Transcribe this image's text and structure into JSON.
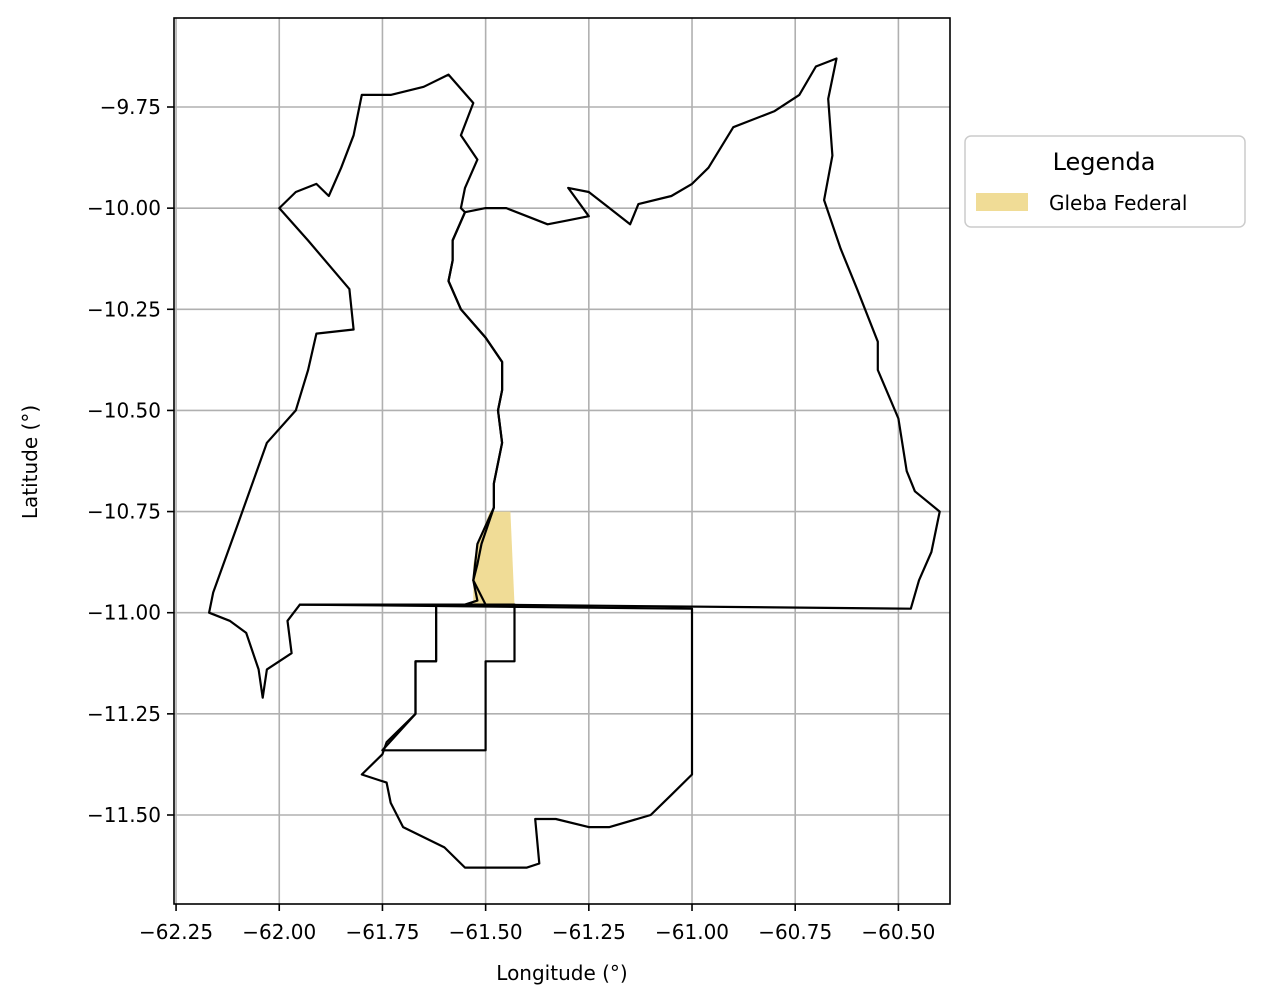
{
  "chart_data": {
    "type": "map",
    "xlabel": "Longitude (°)",
    "ylabel": "Latitude (°)",
    "xlim": [
      -62.255,
      -60.375
    ],
    "ylim": [
      -11.72,
      -9.53
    ],
    "grid": true,
    "xticks": [
      -62.25,
      -62.0,
      -61.75,
      -61.5,
      -61.25,
      -61.0,
      -60.75,
      -60.5
    ],
    "xtick_labels": [
      "−62.25",
      "−62.00",
      "−61.75",
      "−61.50",
      "−61.25",
      "−61.00",
      "−60.75",
      "−60.50"
    ],
    "yticks": [
      -9.75,
      -10.0,
      -10.25,
      -10.5,
      -10.75,
      -11.0,
      -11.25,
      -11.5
    ],
    "ytick_labels": [
      "−9.75",
      "−10.00",
      "−10.25",
      "−10.50",
      "−10.75",
      "−11.00",
      "−11.25",
      "−11.50"
    ],
    "legend": {
      "title": "Legenda",
      "placement": "outside-right-top",
      "entries": [
        {
          "label": "Gleba Federal",
          "color": "#f0dc96"
        }
      ]
    },
    "regions": [
      {
        "name": "west-region",
        "coords": [
          [
            -61.8,
            -9.72
          ],
          [
            -61.73,
            -9.72
          ],
          [
            -61.65,
            -9.7
          ],
          [
            -61.59,
            -9.67
          ],
          [
            -61.53,
            -9.74
          ],
          [
            -61.56,
            -9.82
          ],
          [
            -61.52,
            -9.88
          ],
          [
            -61.55,
            -9.95
          ],
          [
            -61.56,
            -10.0
          ],
          [
            -61.55,
            -10.01
          ],
          [
            -61.58,
            -10.08
          ],
          [
            -61.58,
            -10.13
          ],
          [
            -61.59,
            -10.18
          ],
          [
            -61.56,
            -10.25
          ],
          [
            -61.5,
            -10.32
          ],
          [
            -61.46,
            -10.38
          ],
          [
            -61.46,
            -10.45
          ],
          [
            -61.47,
            -10.5
          ],
          [
            -61.46,
            -10.58
          ],
          [
            -61.48,
            -10.68
          ],
          [
            -61.48,
            -10.74
          ],
          [
            -61.51,
            -10.83
          ],
          [
            -61.52,
            -10.88
          ],
          [
            -61.53,
            -10.92
          ],
          [
            -61.52,
            -10.97
          ],
          [
            -61.55,
            -10.98
          ],
          [
            -61.95,
            -10.98
          ],
          [
            -61.98,
            -11.02
          ],
          [
            -61.97,
            -11.1
          ],
          [
            -62.03,
            -11.14
          ],
          [
            -62.04,
            -11.21
          ],
          [
            -62.05,
            -11.14
          ],
          [
            -62.08,
            -11.05
          ],
          [
            -62.12,
            -11.02
          ],
          [
            -62.17,
            -11.0
          ],
          [
            -62.16,
            -10.95
          ],
          [
            -62.1,
            -10.78
          ],
          [
            -62.03,
            -10.58
          ],
          [
            -61.96,
            -10.5
          ],
          [
            -61.93,
            -10.4
          ],
          [
            -61.91,
            -10.31
          ],
          [
            -61.82,
            -10.3
          ],
          [
            -61.83,
            -10.2
          ],
          [
            -61.93,
            -10.08
          ],
          [
            -62.0,
            -10.0
          ],
          [
            -61.96,
            -9.96
          ],
          [
            -61.91,
            -9.94
          ],
          [
            -61.88,
            -9.97
          ],
          [
            -61.85,
            -9.9
          ],
          [
            -61.82,
            -9.82
          ],
          [
            -61.8,
            -9.72
          ]
        ]
      },
      {
        "name": "east-region",
        "coords": [
          [
            -61.5,
            -10.0
          ],
          [
            -61.45,
            -10.0
          ],
          [
            -61.4,
            -10.02
          ],
          [
            -61.35,
            -10.04
          ],
          [
            -61.3,
            -10.03
          ],
          [
            -61.25,
            -10.02
          ],
          [
            -61.3,
            -9.95
          ],
          [
            -61.25,
            -9.96
          ],
          [
            -61.2,
            -10.0
          ],
          [
            -61.15,
            -10.04
          ],
          [
            -61.13,
            -9.99
          ],
          [
            -61.05,
            -9.97
          ],
          [
            -61.0,
            -9.94
          ],
          [
            -60.96,
            -9.9
          ],
          [
            -60.9,
            -9.8
          ],
          [
            -60.8,
            -9.76
          ],
          [
            -60.74,
            -9.72
          ],
          [
            -60.7,
            -9.65
          ],
          [
            -60.65,
            -9.63
          ],
          [
            -60.67,
            -9.73
          ],
          [
            -60.66,
            -9.87
          ],
          [
            -60.68,
            -9.98
          ],
          [
            -60.64,
            -10.1
          ],
          [
            -60.6,
            -10.2
          ],
          [
            -60.55,
            -10.33
          ],
          [
            -60.55,
            -10.4
          ],
          [
            -60.5,
            -10.52
          ],
          [
            -60.48,
            -10.65
          ],
          [
            -60.46,
            -10.7
          ],
          [
            -60.4,
            -10.75
          ],
          [
            -60.42,
            -10.85
          ],
          [
            -60.45,
            -10.92
          ],
          [
            -60.47,
            -10.99
          ],
          [
            -61.5,
            -10.98
          ],
          [
            -61.53,
            -10.92
          ],
          [
            -61.52,
            -10.83
          ],
          [
            -61.48,
            -10.74
          ],
          [
            -61.48,
            -10.68
          ],
          [
            -61.46,
            -10.58
          ],
          [
            -61.47,
            -10.5
          ],
          [
            -61.46,
            -10.45
          ],
          [
            -61.46,
            -10.38
          ],
          [
            -61.5,
            -10.32
          ],
          [
            -61.56,
            -10.25
          ],
          [
            -61.59,
            -10.18
          ],
          [
            -61.58,
            -10.13
          ],
          [
            -61.58,
            -10.08
          ],
          [
            -61.55,
            -10.01
          ],
          [
            -61.5,
            -10.0
          ]
        ]
      },
      {
        "name": "south-region",
        "coords": [
          [
            -61.95,
            -10.98
          ],
          [
            -61.0,
            -10.99
          ],
          [
            -61.0,
            -11.4
          ],
          [
            -61.05,
            -11.45
          ],
          [
            -61.1,
            -11.5
          ],
          [
            -61.2,
            -11.53
          ],
          [
            -61.25,
            -11.53
          ],
          [
            -61.33,
            -11.51
          ],
          [
            -61.38,
            -11.51
          ],
          [
            -61.37,
            -11.62
          ],
          [
            -61.4,
            -11.63
          ],
          [
            -61.5,
            -11.63
          ],
          [
            -61.55,
            -11.63
          ],
          [
            -61.6,
            -11.58
          ],
          [
            -61.7,
            -11.53
          ],
          [
            -61.73,
            -11.47
          ],
          [
            -61.74,
            -11.42
          ],
          [
            -61.8,
            -11.4
          ],
          [
            -61.75,
            -11.35
          ],
          [
            -61.74,
            -11.32
          ],
          [
            -61.67,
            -11.25
          ],
          [
            -61.67,
            -11.12
          ],
          [
            -61.62,
            -11.12
          ],
          [
            -61.62,
            -10.98
          ],
          [
            -61.95,
            -10.98
          ]
        ]
      },
      {
        "name": "inner-south-polygon",
        "coords": [
          [
            -61.62,
            -10.98
          ],
          [
            -61.62,
            -11.12
          ],
          [
            -61.67,
            -11.12
          ],
          [
            -61.67,
            -11.25
          ],
          [
            -61.75,
            -11.34
          ],
          [
            -61.5,
            -11.34
          ],
          [
            -61.5,
            -11.12
          ],
          [
            -61.43,
            -11.12
          ],
          [
            -61.43,
            -10.98
          ],
          [
            -61.62,
            -10.98
          ]
        ]
      }
    ],
    "highlighted_area": {
      "name": "Gleba Federal",
      "coords": [
        [
          -61.52,
          -10.83
        ],
        [
          -61.49,
          -10.75
        ],
        [
          -61.44,
          -10.75
        ],
        [
          -61.43,
          -10.98
        ],
        [
          -61.53,
          -10.98
        ],
        [
          -61.53,
          -10.88
        ],
        [
          -61.52,
          -10.83
        ]
      ]
    }
  }
}
